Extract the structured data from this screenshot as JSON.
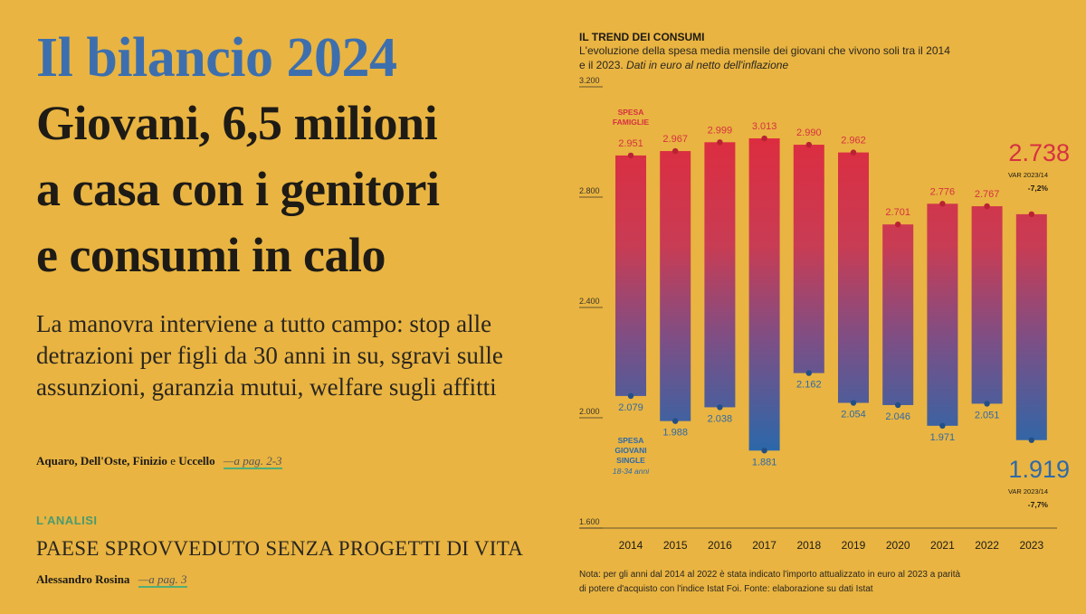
{
  "article": {
    "kicker": "Il bilancio 2024",
    "headline_lines": [
      "Giovani, 6,5 milioni",
      "a casa con i genitori",
      "e consumi in calo"
    ],
    "deck_lines": [
      "La manovra interviene a tutto campo: stop alle",
      "detrazioni per figli da 30 anni in su, sgravi sulle",
      "assunzioni, garanzia mutui, welfare sugli affitti"
    ],
    "byline_a": "Aquaro, Dell'Oste, Finizio",
    "byline_e": "e",
    "byline_b": "Uccello",
    "byline_ref": "—a pag. 2-3"
  },
  "analysis": {
    "label": "L'ANALISI",
    "title": "PAESE SPROVVEDUTO SENZA PROGETTI DI VITA",
    "author": "Alessandro Rosina",
    "ref": "—a pag. 3"
  },
  "chart_header": {
    "title": "IL TREND DEI CONSUMI",
    "subtitle_line1": "L'evoluzione della spesa media mensile dei giovani che vivono soli tra il 2014",
    "subtitle_line2": "e il 2023.",
    "subtitle_italic": "Dati in euro al netto dell'inflazione"
  },
  "note_lines": [
    "Nota: per gli anni dal 2014 al 2022 è stata indicato l'importo attualizzato in euro al 2023 a parità",
    "di potere d'acquisto con l'indice Istat Foi. Fonte: elaborazione su dati Istat"
  ],
  "colors": {
    "background": "#e9b441",
    "red": "#d63142",
    "blue": "#2f69a8",
    "kicker_blue": "#3d6fae",
    "green": "#4a9a6e"
  },
  "chart_data": {
    "type": "bar",
    "categories": [
      "2014",
      "2015",
      "2016",
      "2017",
      "2018",
      "2019",
      "2020",
      "2021",
      "2022",
      "2023"
    ],
    "series": [
      {
        "name": "Spesa famiglie",
        "values": [
          2951,
          2967,
          2999,
          3013,
          2990,
          2962,
          2701,
          2776,
          2767,
          2738
        ],
        "labels": [
          "2.951",
          "2.967",
          "2.999",
          "3.013",
          "2.990",
          "2.962",
          "2.701",
          "2.776",
          "2.767",
          "2.738"
        ]
      },
      {
        "name": "Spesa giovani single",
        "values": [
          2079,
          1988,
          2038,
          1881,
          2162,
          2054,
          2046,
          1971,
          2051,
          1919
        ],
        "labels": [
          "2.079",
          "1.988",
          "2.038",
          "1.881",
          "2.162",
          "2.054",
          "2.046",
          "1.971",
          "2.051",
          "1.919"
        ]
      }
    ],
    "ylim": [
      1600,
      3200
    ],
    "yticks": [
      1600,
      2000,
      2400,
      2800,
      3200
    ],
    "ytick_labels": [
      "1.600",
      "2.000",
      "2.400",
      "2.800",
      "3.200"
    ],
    "legend_top": [
      "SPESA",
      "FAMIGLIE"
    ],
    "legend_bottom": [
      "SPESA",
      "GIOVANI",
      "SINGLE"
    ],
    "legend_bottom_sub": "18-34 anni",
    "summary_top": {
      "value": "2.738",
      "label": "VAR 2023/14",
      "change": "-7,2%"
    },
    "summary_bottom": {
      "value": "1.919",
      "label": "VAR 2023/14",
      "change": "-7,7%"
    }
  }
}
